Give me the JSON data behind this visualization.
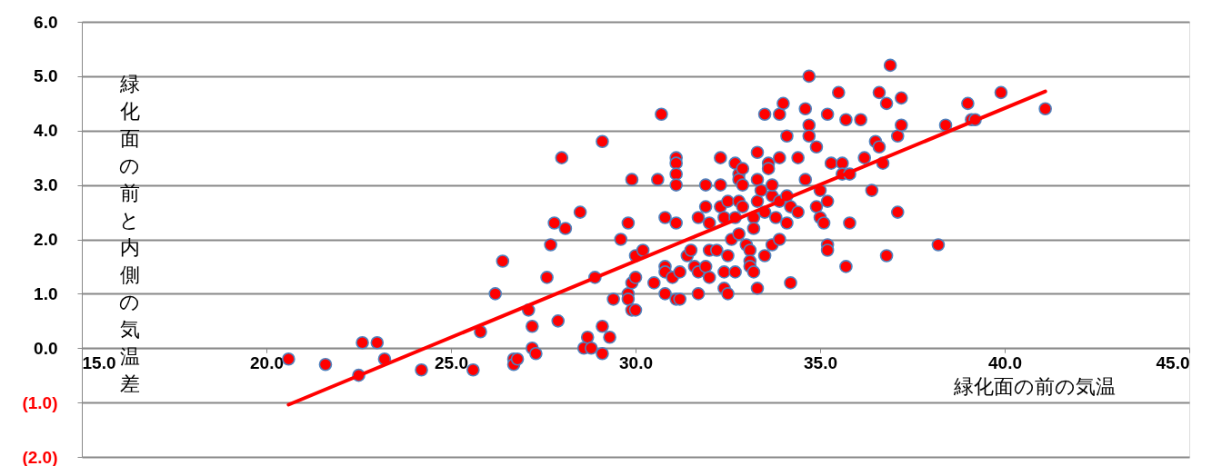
{
  "chart_data": {
    "type": "scatter",
    "xlabel": "緑化面の前の気温",
    "ylabel": "緑化面の前と内側の気温差",
    "xlim": [
      15,
      45
    ],
    "ylim": [
      -2,
      6
    ],
    "xticks": [
      {
        "value": 15,
        "label": "15.0"
      },
      {
        "value": 20,
        "label": "20.0"
      },
      {
        "value": 25,
        "label": "25.0"
      },
      {
        "value": 30,
        "label": "30.0"
      },
      {
        "value": 35,
        "label": "35.0"
      },
      {
        "value": 40,
        "label": "40.0"
      },
      {
        "value": 45,
        "label": "45.0"
      }
    ],
    "yticks": [
      {
        "value": -2,
        "label": "(2.0)"
      },
      {
        "value": -1,
        "label": "(1.0)"
      },
      {
        "value": 0,
        "label": "0.0"
      },
      {
        "value": 1,
        "label": "1.0"
      },
      {
        "value": 2,
        "label": "2.0"
      },
      {
        "value": 3,
        "label": "3.0"
      },
      {
        "value": 4,
        "label": "4.0"
      },
      {
        "value": 5,
        "label": "5.0"
      },
      {
        "value": 6,
        "label": "6.0"
      }
    ],
    "grid": "y",
    "series": [
      {
        "color": "#ff0000",
        "marker": "circle",
        "x": [
          20.6,
          21.6,
          22.6,
          23.0,
          23.2,
          22.5,
          24.2,
          25.6,
          25.8,
          26.2,
          26.4,
          26.7,
          26.7,
          26.8,
          27.1,
          27.2,
          27.2,
          27.3,
          27.6,
          27.7,
          27.8,
          27.9,
          28.0,
          28.1,
          28.5,
          28.6,
          28.7,
          28.8,
          28.9,
          29.1,
          29.1,
          29.1,
          29.3,
          29.4,
          29.6,
          29.8,
          29.8,
          29.8,
          29.9,
          29.9,
          29.9,
          30.0,
          30.0,
          30.0,
          30.2,
          30.5,
          30.6,
          30.7,
          30.8,
          30.8,
          30.8,
          30.8,
          31.0,
          31.1,
          31.2,
          31.1,
          31.1,
          31.1,
          31.1,
          31.1,
          31.2,
          31.4,
          31.5,
          31.6,
          31.7,
          31.7,
          31.7,
          31.9,
          31.9,
          31.9,
          32.0,
          32.0,
          32.0,
          32.2,
          32.3,
          32.3,
          32.3,
          32.4,
          32.4,
          32.4,
          32.5,
          32.5,
          32.6,
          32.5,
          32.7,
          32.7,
          32.7,
          32.8,
          32.8,
          32.8,
          32.8,
          32.9,
          32.9,
          32.9,
          33.0,
          33.1,
          33.1,
          33.1,
          33.2,
          33.2,
          33.2,
          33.3,
          33.3,
          33.3,
          33.3,
          33.4,
          33.5,
          33.5,
          33.5,
          33.6,
          33.6,
          33.7,
          33.7,
          33.7,
          33.8,
          33.9,
          33.9,
          33.9,
          33.9,
          34.0,
          34.1,
          34.1,
          34.1,
          34.2,
          34.2,
          34.4,
          34.4,
          34.6,
          34.6,
          34.7,
          34.7,
          34.7,
          34.9,
          34.9,
          35.0,
          35.0,
          35.1,
          35.2,
          35.2,
          35.2,
          35.2,
          35.3,
          35.5,
          35.6,
          35.6,
          35.7,
          35.7,
          35.8,
          35.8,
          36.1,
          36.2,
          36.4,
          36.5,
          36.6,
          36.6,
          36.7,
          36.8,
          36.8,
          36.9,
          37.1,
          37.1,
          37.2,
          37.2,
          38.2,
          38.4,
          39.0,
          39.1,
          39.2,
          39.9,
          41.1
        ],
        "values": [
          -0.2,
          -0.3,
          0.1,
          0.1,
          -0.2,
          -0.5,
          -0.4,
          -0.4,
          0.3,
          1.0,
          1.6,
          -0.2,
          -0.3,
          -0.2,
          0.7,
          0.4,
          0.0,
          -0.1,
          1.3,
          1.9,
          2.3,
          0.5,
          3.5,
          2.2,
          2.5,
          0.0,
          0.2,
          0.0,
          1.3,
          -0.1,
          0.4,
          3.8,
          0.2,
          0.9,
          2.0,
          2.3,
          1.0,
          0.9,
          1.2,
          3.1,
          0.7,
          0.7,
          1.3,
          1.7,
          1.8,
          1.2,
          3.1,
          4.3,
          1.5,
          1.4,
          1.0,
          2.4,
          1.3,
          0.9,
          0.9,
          3.5,
          3.4,
          3.2,
          3.0,
          2.3,
          1.4,
          1.7,
          1.8,
          1.5,
          1.4,
          1.0,
          2.4,
          3.0,
          2.6,
          1.5,
          1.3,
          2.3,
          1.8,
          1.8,
          3.5,
          3.0,
          2.6,
          1.4,
          2.4,
          1.1,
          1.7,
          1.0,
          2.0,
          2.7,
          3.4,
          2.4,
          1.4,
          3.2,
          3.1,
          2.7,
          2.1,
          3.3,
          3.0,
          2.6,
          1.9,
          1.8,
          1.6,
          1.5,
          1.4,
          2.4,
          2.2,
          3.6,
          3.1,
          1.1,
          2.7,
          2.9,
          4.3,
          2.5,
          1.7,
          3.4,
          3.3,
          2.8,
          1.9,
          3.0,
          2.4,
          4.3,
          3.5,
          2.7,
          2.0,
          4.5,
          3.9,
          2.8,
          2.3,
          2.6,
          1.2,
          3.5,
          2.5,
          4.4,
          3.1,
          5.0,
          4.1,
          3.9,
          3.7,
          2.6,
          2.9,
          2.4,
          2.3,
          4.3,
          2.7,
          1.9,
          1.8,
          3.4,
          4.7,
          3.4,
          3.2,
          4.2,
          1.5,
          2.3,
          3.2,
          4.2,
          3.5,
          2.9,
          3.8,
          3.7,
          4.7,
          3.4,
          4.5,
          1.7,
          5.2,
          3.9,
          2.5,
          4.6,
          4.1,
          1.9,
          4.1,
          4.5,
          4.2,
          4.2,
          4.7,
          4.4
        ]
      },
      {
        "type": "line",
        "color": "#ff0000",
        "x": [
          20.6,
          41.1
        ],
        "values": [
          -1.04,
          4.72
        ]
      }
    ]
  }
}
